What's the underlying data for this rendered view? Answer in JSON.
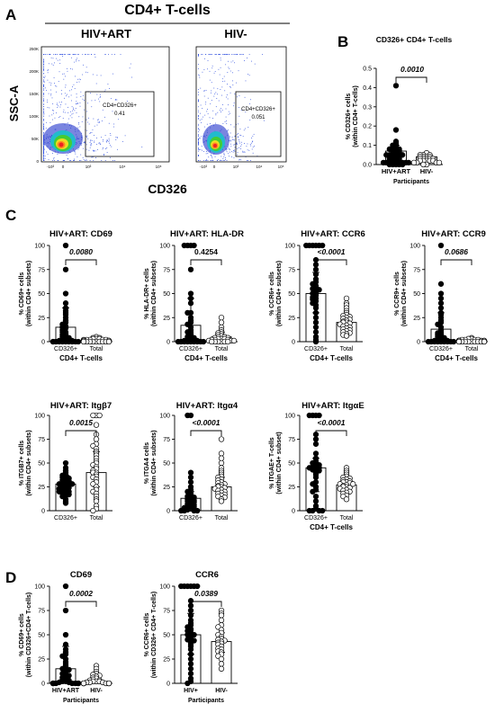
{
  "panel_letters": [
    "A",
    "B",
    "C",
    "D"
  ],
  "panelA": {
    "title": "CD4+ T-cells",
    "groups": [
      "HIV+ART",
      "HIV-"
    ],
    "ylabel": "SSC-A",
    "xlabel": "CD326",
    "gates": [
      {
        "label": "CD4+CD326+",
        "value": "0.41"
      },
      {
        "label": "CD4+CD326+",
        "value": "0.051"
      }
    ],
    "y_ticks": [
      "250K",
      "200K",
      "150K",
      "100K",
      "50K",
      "0"
    ],
    "x_ticks": [
      "-10³",
      "0",
      "10³",
      "10⁴",
      "10⁵"
    ]
  },
  "chart_data": [
    {
      "id": "B",
      "type": "scatter",
      "title": "CD326+ CD4+ T-cells",
      "ylabel": [
        "% CD326+ cells",
        "(within CD4+ T-cells)"
      ],
      "xlabel": "Participants",
      "categories": [
        "HIV+ART",
        "HIV-"
      ],
      "ylim": [
        0,
        0.5
      ],
      "yticks": [
        "0.0",
        "0.1",
        "0.2",
        "0.3",
        "0.4",
        "0.5"
      ],
      "pvalue": "0.0010",
      "series": [
        {
          "category": "HIV+ART",
          "fill": "#000",
          "median": 0.07,
          "iqr": [
            0.02,
            0.1
          ],
          "values": [
            0.41,
            0.18,
            0.12,
            0.11,
            0.1,
            0.1,
            0.09,
            0.09,
            0.08,
            0.08,
            0.07,
            0.07,
            0.07,
            0.06,
            0.06,
            0.06,
            0.05,
            0.05,
            0.05,
            0.04,
            0.04,
            0.04,
            0.03,
            0.03,
            0.03,
            0.03,
            0.02,
            0.02,
            0.02,
            0.02,
            0.01,
            0.01,
            0.01,
            0.01,
            0.01,
            0.0,
            0.0,
            0.0,
            0.0,
            0.0
          ]
        },
        {
          "category": "HIV-",
          "fill": "#fff",
          "median": 0.04,
          "iqr": [
            0.02,
            0.05
          ],
          "values": [
            0.06,
            0.05,
            0.05,
            0.05,
            0.04,
            0.04,
            0.04,
            0.04,
            0.03,
            0.03,
            0.03,
            0.03,
            0.03,
            0.02,
            0.02,
            0.02,
            0.02,
            0.02,
            0.01,
            0.01,
            0.01,
            0.01,
            0.0,
            0.0
          ]
        }
      ]
    },
    {
      "id": "C1",
      "type": "scatter",
      "title": "HIV+ART: CD69",
      "ylabel": [
        "% CD69+ cells",
        "(within CD4+ subsets)"
      ],
      "xlabel": "CD4+ T-cells",
      "categories": [
        "CD326+",
        "Total"
      ],
      "ylim": [
        0,
        100
      ],
      "yticks": [
        "0",
        "25",
        "50",
        "75",
        "100"
      ],
      "pvalue": "0.0080",
      "p_italic": true,
      "series": [
        {
          "category": "CD326+",
          "fill": "#000",
          "median": 15,
          "iqr": [
            4,
            35
          ],
          "values": [
            100,
            75,
            50,
            40,
            35,
            32,
            30,
            28,
            25,
            22,
            20,
            18,
            16,
            15,
            14,
            12,
            10,
            10,
            8,
            7,
            6,
            5,
            4,
            3,
            2,
            2,
            1,
            1,
            0,
            0,
            0,
            0,
            0,
            0,
            0,
            0,
            0,
            0
          ]
        },
        {
          "category": "Total",
          "fill": "#fff",
          "median": 2,
          "iqr": [
            1,
            3
          ],
          "values": [
            5,
            4,
            4,
            3,
            3,
            3,
            2,
            2,
            2,
            2,
            2,
            1,
            1,
            1,
            1,
            1,
            1,
            0,
            0,
            0,
            0,
            0,
            0,
            0,
            0,
            0
          ]
        }
      ]
    },
    {
      "id": "C2",
      "type": "scatter",
      "title": "HIV+ART: HLA-DR",
      "ylabel": [
        "% HLA-DR+ cells",
        "(within CD4+ subsets)"
      ],
      "xlabel": "CD4+ T-cells",
      "categories": [
        "CD326+",
        "Total"
      ],
      "ylim": [
        0,
        100
      ],
      "yticks": [
        "0",
        "25",
        "50",
        "75",
        "100"
      ],
      "pvalue": "0.4254",
      "p_italic": false,
      "series": [
        {
          "category": "CD326+",
          "fill": "#000",
          "median": 17,
          "iqr": [
            2,
            45
          ],
          "values": [
            100,
            100,
            100,
            100,
            75,
            50,
            45,
            40,
            30,
            30,
            25,
            22,
            20,
            18,
            15,
            12,
            10,
            10,
            8,
            6,
            5,
            4,
            3,
            2,
            2,
            1,
            1,
            0,
            0,
            0,
            0,
            0,
            0,
            0,
            0,
            0
          ]
        },
        {
          "category": "Total",
          "fill": "#fff",
          "median": 5,
          "iqr": [
            2,
            10
          ],
          "values": [
            25,
            20,
            15,
            12,
            10,
            9,
            8,
            7,
            6,
            5,
            5,
            4,
            4,
            3,
            3,
            3,
            2,
            2,
            2,
            1,
            1,
            1,
            0,
            0,
            0,
            0,
            0,
            0
          ]
        }
      ]
    },
    {
      "id": "C3",
      "type": "scatter",
      "title": "HIV+ART: CCR6",
      "ylabel": [
        "% CCR6+ cells",
        "(within CD4+ subsets)"
      ],
      "xlabel": "CD4+ T-cells",
      "categories": [
        "CD326+",
        "Total"
      ],
      "ylim": [
        0,
        100
      ],
      "yticks": [
        "0",
        "25",
        "50",
        "75",
        "100"
      ],
      "pvalue": "<0.0001",
      "p_italic": true,
      "series": [
        {
          "category": "CD326+",
          "fill": "#000",
          "median": 50,
          "iqr": [
            30,
            72
          ],
          "values": [
            100,
            100,
            100,
            100,
            100,
            100,
            85,
            80,
            75,
            70,
            65,
            62,
            60,
            58,
            56,
            55,
            54,
            52,
            50,
            50,
            48,
            46,
            45,
            44,
            42,
            40,
            38,
            35,
            30,
            25,
            20,
            15,
            10,
            5,
            2,
            0
          ]
        },
        {
          "category": "Total",
          "fill": "#fff",
          "median": 20,
          "iqr": [
            12,
            27
          ],
          "values": [
            45,
            40,
            38,
            35,
            32,
            30,
            28,
            27,
            26,
            25,
            24,
            23,
            22,
            21,
            20,
            20,
            19,
            18,
            17,
            16,
            15,
            14,
            13,
            12,
            11,
            10,
            9,
            8,
            7,
            6
          ]
        }
      ]
    },
    {
      "id": "C4",
      "type": "scatter",
      "title": "HIV+ART: CCR9",
      "ylabel": [
        "% CCR9+ cells",
        "(within CD4+ subsets)"
      ],
      "xlabel": "CD4+ T-cells",
      "categories": [
        "CD326+",
        "Total"
      ],
      "ylim": [
        0,
        100
      ],
      "yticks": [
        "0",
        "25",
        "50",
        "75",
        "100"
      ],
      "pvalue": "0.0686",
      "p_italic": true,
      "series": [
        {
          "category": "CD326+",
          "fill": "#000",
          "median": 13,
          "iqr": [
            1,
            30
          ],
          "values": [
            100,
            60,
            50,
            45,
            40,
            35,
            30,
            28,
            25,
            22,
            20,
            18,
            15,
            12,
            10,
            9,
            8,
            7,
            6,
            5,
            4,
            3,
            2,
            2,
            1,
            1,
            0,
            0,
            0,
            0,
            0,
            0,
            0,
            0,
            0
          ]
        },
        {
          "category": "Total",
          "fill": "#fff",
          "median": 1,
          "iqr": [
            0,
            2
          ],
          "values": [
            4,
            3,
            3,
            2,
            2,
            2,
            2,
            1,
            1,
            1,
            1,
            1,
            1,
            0,
            0,
            0,
            0,
            0,
            0,
            0,
            0,
            0,
            0,
            0
          ]
        }
      ]
    },
    {
      "id": "C5",
      "type": "scatter",
      "title": "HIV+ART: Itgβ7",
      "ylabel": [
        "% ITGB7+ cells",
        "(within CD4+ subsets)"
      ],
      "xlabel": "",
      "categories": [
        "CD326+",
        "Total"
      ],
      "ylim": [
        0,
        100
      ],
      "yticks": [
        "0",
        "25",
        "50",
        "75",
        "100"
      ],
      "pvalue": "0.0015",
      "p_italic": true,
      "series": [
        {
          "category": "CD326+",
          "fill": "#000",
          "median": 28,
          "iqr": [
            20,
            37
          ],
          "values": [
            50,
            45,
            42,
            40,
            38,
            37,
            36,
            35,
            34,
            33,
            32,
            31,
            30,
            30,
            29,
            28,
            28,
            27,
            26,
            25,
            25,
            24,
            23,
            22,
            21,
            20,
            20,
            19,
            18,
            17,
            16,
            15,
            12,
            10,
            8
          ]
        },
        {
          "category": "Total",
          "fill": "#fff",
          "median": 40,
          "iqr": [
            25,
            62
          ],
          "values": [
            100,
            100,
            100,
            90,
            80,
            75,
            70,
            68,
            65,
            62,
            60,
            58,
            55,
            52,
            50,
            48,
            46,
            44,
            42,
            40,
            40,
            38,
            36,
            35,
            33,
            30,
            28,
            25,
            22,
            20,
            18,
            15,
            12,
            10,
            5,
            2,
            0
          ]
        }
      ]
    },
    {
      "id": "C6",
      "type": "scatter",
      "title": "HIV+ART: Itgα4",
      "ylabel": [
        "% ITGA4 cells",
        "(within CD4+ subsets)"
      ],
      "xlabel": "",
      "categories": [
        "CD326+",
        "Total"
      ],
      "ylim": [
        0,
        100
      ],
      "yticks": [
        "0",
        "25",
        "50",
        "75",
        "100"
      ],
      "pvalue": "<0.0001",
      "p_italic": true,
      "series": [
        {
          "category": "CD326+",
          "fill": "#000",
          "median": 13,
          "iqr": [
            5,
            20
          ],
          "values": [
            100,
            100,
            40,
            35,
            30,
            25,
            22,
            20,
            18,
            16,
            15,
            14,
            13,
            12,
            11,
            10,
            10,
            9,
            8,
            7,
            6,
            5,
            5,
            4,
            3,
            2,
            1,
            0,
            0,
            0,
            0
          ]
        },
        {
          "category": "Total",
          "fill": "#fff",
          "median": 25,
          "iqr": [
            18,
            35
          ],
          "values": [
            75,
            60,
            55,
            50,
            45,
            42,
            40,
            38,
            36,
            35,
            33,
            32,
            30,
            29,
            28,
            27,
            26,
            25,
            25,
            24,
            23,
            22,
            21,
            20,
            19,
            18,
            17,
            16,
            15,
            14,
            12,
            10
          ]
        }
      ]
    },
    {
      "id": "C7",
      "type": "scatter",
      "title": "HIV+ART: ItgαE",
      "ylabel": [
        "% ITGAE+ T-cells",
        "(within CD4+ subset)"
      ],
      "xlabel": "CD4+ T-cells",
      "categories": [
        "CD326+",
        "Total"
      ],
      "ylim": [
        0,
        100
      ],
      "yticks": [
        "0",
        "25",
        "50",
        "75",
        "100"
      ],
      "pvalue": "<0.0001",
      "p_italic": true,
      "series": [
        {
          "category": "CD326+",
          "fill": "#000",
          "median": 45,
          "iqr": [
            20,
            55
          ],
          "values": [
            100,
            100,
            100,
            100,
            80,
            75,
            70,
            60,
            55,
            52,
            50,
            50,
            48,
            47,
            46,
            45,
            45,
            44,
            43,
            42,
            40,
            38,
            35,
            30,
            28,
            25,
            22,
            20,
            15,
            10,
            5,
            2,
            0,
            0,
            0,
            0
          ]
        },
        {
          "category": "Total",
          "fill": "#fff",
          "median": 27,
          "iqr": [
            20,
            33
          ],
          "values": [
            45,
            42,
            40,
            38,
            36,
            35,
            34,
            33,
            32,
            31,
            30,
            30,
            29,
            28,
            28,
            27,
            26,
            25,
            25,
            24,
            23,
            22,
            21,
            20,
            19,
            18,
            16,
            15,
            12
          ]
        }
      ]
    },
    {
      "id": "D1",
      "type": "scatter",
      "title": "CD69",
      "ylabel": [
        "% CD69+ cells",
        "(within CD326+CD4+ T-cells)"
      ],
      "xlabel": "Participants",
      "categories": [
        "HIV+ART",
        "HIV-"
      ],
      "ylim": [
        0,
        100
      ],
      "yticks": [
        "0",
        "25",
        "50",
        "75",
        "100"
      ],
      "pvalue": "0.0002",
      "p_italic": true,
      "series": [
        {
          "category": "HIV+ART",
          "fill": "#000",
          "median": 15,
          "iqr": [
            4,
            38
          ],
          "values": [
            100,
            75,
            50,
            40,
            35,
            32,
            30,
            28,
            25,
            22,
            20,
            18,
            16,
            15,
            14,
            12,
            10,
            10,
            8,
            7,
            6,
            5,
            4,
            3,
            2,
            2,
            1,
            1,
            0,
            0,
            0,
            0,
            0,
            0,
            0,
            0,
            0,
            0
          ]
        },
        {
          "category": "HIV-",
          "fill": "#fff",
          "median": 2,
          "iqr": [
            0,
            5
          ],
          "values": [
            18,
            15,
            12,
            10,
            9,
            8,
            7,
            6,
            5,
            4,
            3,
            3,
            2,
            2,
            2,
            1,
            1,
            1,
            0,
            0,
            0,
            0,
            0,
            0,
            0,
            0
          ]
        }
      ]
    },
    {
      "id": "D2",
      "type": "scatter",
      "title": "CCR6",
      "ylabel": [
        "% CCR6+ cells",
        "(within CD326+ CD4+ T-cells)"
      ],
      "xlabel": "Participants",
      "categories": [
        "HIV+",
        "HIV-"
      ],
      "ylim": [
        0,
        100
      ],
      "yticks": [
        "0",
        "25",
        "50",
        "75",
        "100"
      ],
      "pvalue": "0.0389",
      "p_italic": true,
      "series": [
        {
          "category": "HIV+",
          "fill": "#000",
          "median": 50,
          "iqr": [
            30,
            72
          ],
          "values": [
            100,
            100,
            100,
            100,
            100,
            100,
            85,
            80,
            75,
            70,
            65,
            62,
            60,
            58,
            56,
            55,
            54,
            52,
            50,
            50,
            48,
            46,
            45,
            44,
            42,
            40,
            38,
            35,
            30,
            25,
            20,
            15,
            10,
            5,
            2,
            0
          ]
        },
        {
          "category": "HIV-",
          "fill": "#fff",
          "median": 43,
          "iqr": [
            32,
            52
          ],
          "values": [
            75,
            72,
            70,
            65,
            60,
            58,
            55,
            52,
            50,
            48,
            46,
            45,
            44,
            43,
            42,
            41,
            40,
            38,
            36,
            35,
            33,
            32,
            30,
            28,
            25,
            20,
            15
          ]
        }
      ]
    }
  ]
}
